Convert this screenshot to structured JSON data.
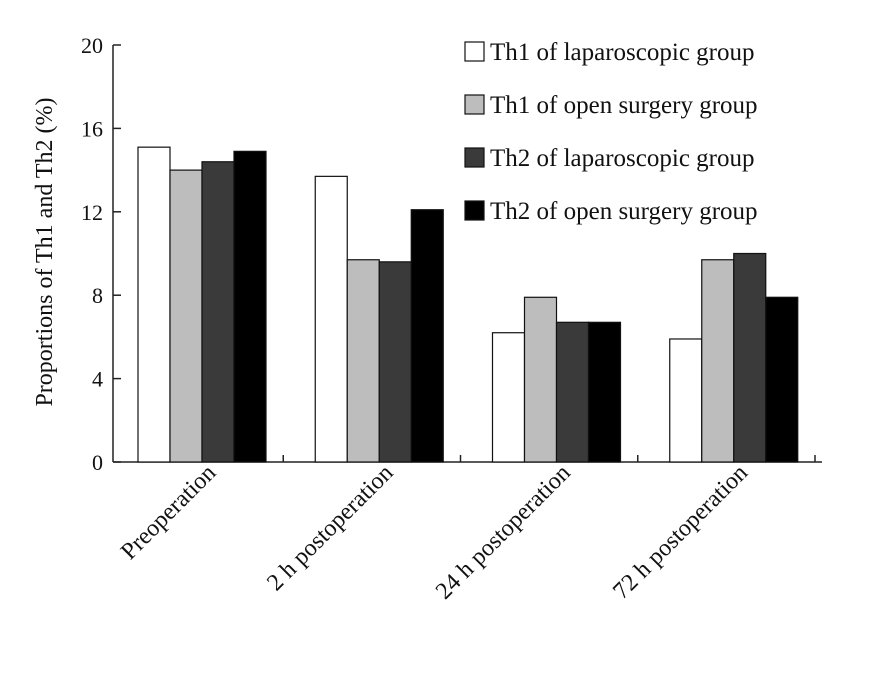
{
  "chart_data": {
    "type": "bar",
    "title": "",
    "xlabel": "",
    "ylabel": "Proportions of Th1 and Th2 (%)",
    "ylim": [
      0,
      20
    ],
    "yticks": [
      0,
      4,
      8,
      12,
      16,
      20
    ],
    "categories": [
      "Preoperation",
      "2 h postoperation",
      "24 h postoperation",
      "72 h postoperation"
    ],
    "legend_position": "top-right",
    "series": [
      {
        "name": "Th1 of laparoscopic group",
        "color": "#ffffff",
        "values": [
          15.1,
          13.7,
          6.2,
          5.9
        ]
      },
      {
        "name": "Th1 of open surgery group",
        "color": "#bdbdbd",
        "values": [
          14.0,
          9.7,
          7.9,
          9.7
        ]
      },
      {
        "name": "Th2 of laparoscopic group",
        "color": "#3a3a3a",
        "values": [
          14.4,
          9.6,
          6.7,
          10.0
        ]
      },
      {
        "name": "Th2 of open surgery group",
        "color": "#000000",
        "values": [
          14.9,
          12.1,
          6.7,
          7.9
        ]
      }
    ]
  }
}
